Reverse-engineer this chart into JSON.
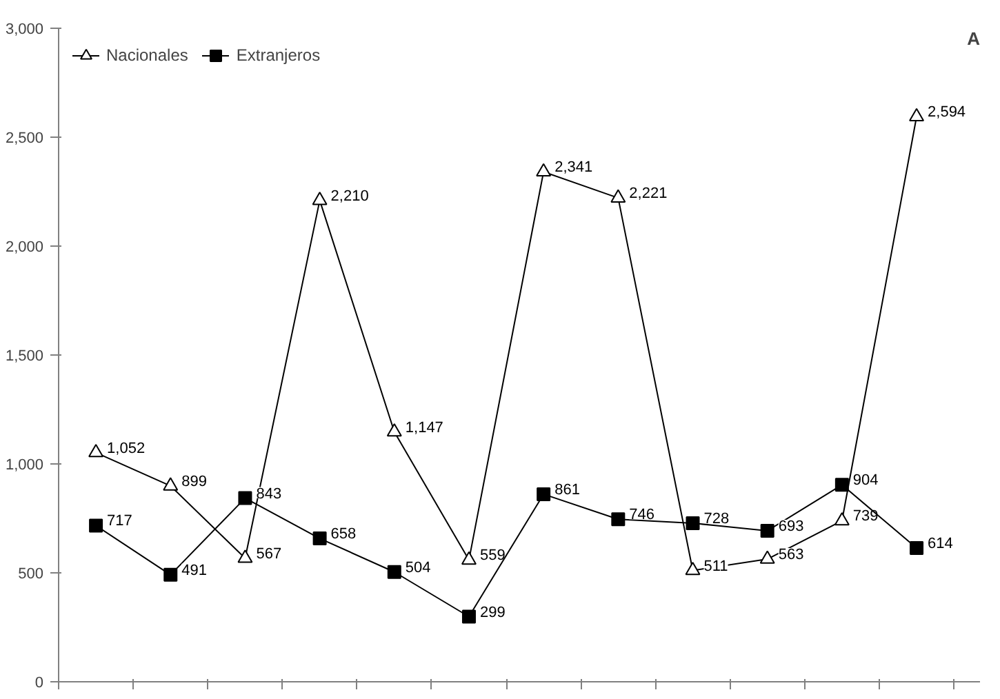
{
  "chart_data": {
    "type": "line",
    "annotations": [
      "A"
    ],
    "categories": [
      null,
      null,
      null,
      null,
      null,
      null,
      null,
      null,
      null,
      null,
      null,
      null
    ],
    "series": [
      {
        "name": "Nacionales",
        "color": "#000000",
        "marker": "triangle",
        "values": [
          1052,
          899,
          567,
          2210,
          1147,
          559,
          2341,
          2221,
          511,
          563,
          739,
          2594
        ],
        "value_labels": [
          "1,052",
          "899",
          "567",
          "2,210",
          "1,147",
          "559",
          "2,341",
          "2,221",
          "511",
          "563",
          "739",
          "2,594"
        ]
      },
      {
        "name": "Extranjeros",
        "color": "#000000",
        "marker": "square",
        "values": [
          717,
          491,
          843,
          658,
          504,
          299,
          861,
          746,
          728,
          693,
          904,
          614
        ],
        "value_labels": [
          "717",
          "491",
          "843",
          "658",
          "504",
          "299",
          "861",
          "746",
          "728",
          "693",
          "904",
          "614"
        ]
      }
    ],
    "ylim": [
      0,
      3000
    ],
    "yticks": [
      0,
      {
        "value": 500,
        "label": "500"
      },
      {
        "value": 1000,
        "label": "1,000"
      },
      {
        "value": 1500,
        "label": "1,500"
      },
      {
        "value": 2000,
        "label": "2,000"
      },
      {
        "value": 2500,
        "label": "2,500"
      },
      {
        "value": 3000,
        "label": "3,000"
      }
    ],
    "grid": false,
    "legend": "top left",
    "line_style": "solid"
  }
}
